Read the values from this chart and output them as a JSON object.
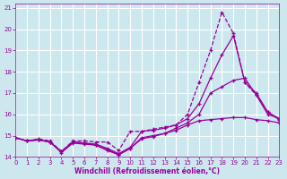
{
  "xlabel": "Windchill (Refroidissement éolien,°C)",
  "bg_color": "#cce8ee",
  "line_color": "#990099",
  "grid_color": "#ffffff",
  "xlim": [
    0,
    23
  ],
  "ylim": [
    14,
    21.2
  ],
  "yticks": [
    14,
    15,
    16,
    17,
    18,
    19,
    20,
    21
  ],
  "xticks": [
    0,
    1,
    2,
    3,
    4,
    5,
    6,
    7,
    8,
    9,
    10,
    11,
    12,
    13,
    14,
    15,
    16,
    17,
    18,
    19,
    20,
    21,
    22,
    23
  ],
  "lines": [
    {
      "x": [
        0,
        1,
        2,
        3,
        4,
        5,
        6,
        7,
        8,
        9,
        10,
        11,
        12,
        13,
        14,
        15,
        16,
        17,
        18,
        19,
        20,
        21,
        22,
        23
      ],
      "y": [
        14.9,
        14.75,
        14.85,
        14.75,
        14.25,
        14.75,
        14.75,
        14.7,
        14.7,
        14.3,
        15.2,
        15.2,
        15.3,
        15.4,
        15.5,
        16.0,
        17.5,
        19.0,
        20.8,
        19.8,
        17.5,
        16.9,
        16.1,
        15.75
      ],
      "linestyle": "--"
    },
    {
      "x": [
        0,
        1,
        2,
        3,
        4,
        5,
        6,
        7,
        8,
        9,
        10,
        11,
        12,
        13,
        14,
        15,
        16,
        17,
        18,
        19,
        20,
        21,
        22,
        23
      ],
      "y": [
        14.9,
        14.75,
        14.8,
        14.7,
        14.25,
        14.7,
        14.65,
        14.6,
        14.4,
        14.15,
        14.45,
        15.2,
        15.25,
        15.35,
        15.5,
        15.8,
        16.5,
        17.7,
        18.8,
        19.7,
        17.5,
        17.0,
        16.1,
        15.8
      ],
      "linestyle": "-"
    },
    {
      "x": [
        0,
        1,
        2,
        3,
        4,
        5,
        6,
        7,
        8,
        9,
        10,
        11,
        12,
        13,
        14,
        15,
        16,
        17,
        18,
        19,
        20,
        21,
        22,
        23
      ],
      "y": [
        14.9,
        14.75,
        14.8,
        14.7,
        14.25,
        14.7,
        14.65,
        14.55,
        14.35,
        14.1,
        14.4,
        14.9,
        15.0,
        15.1,
        15.35,
        15.6,
        16.0,
        17.0,
        17.3,
        17.6,
        17.7,
        16.9,
        16.0,
        15.8
      ],
      "linestyle": "-"
    },
    {
      "x": [
        0,
        1,
        2,
        3,
        4,
        5,
        6,
        7,
        8,
        9,
        10,
        11,
        12,
        13,
        14,
        15,
        16,
        17,
        18,
        19,
        20,
        21,
        22,
        23
      ],
      "y": [
        14.9,
        14.75,
        14.8,
        14.7,
        14.2,
        14.65,
        14.6,
        14.55,
        14.3,
        14.1,
        14.4,
        14.85,
        14.95,
        15.1,
        15.25,
        15.5,
        15.7,
        15.75,
        15.8,
        15.85,
        15.85,
        15.75,
        15.7,
        15.6
      ],
      "linestyle": "-"
    }
  ]
}
